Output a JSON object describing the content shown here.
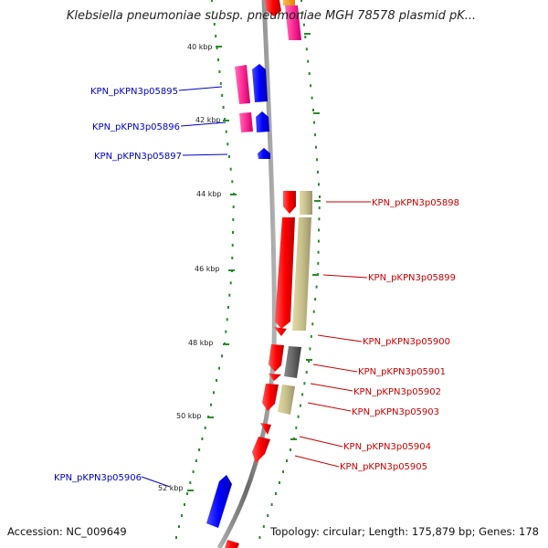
{
  "title": "Klebsiella pneumoniae subsp. pneumoniae MGH 78578 plasmid pK...",
  "footer": {
    "accession": "Accession: NC_009649",
    "info": "Topology: circular; Length: 175,879 bp; Genes: 178"
  },
  "ticks": [
    {
      "label": "40 kbp"
    },
    {
      "label": "42 kbp"
    },
    {
      "label": "44 kbp"
    },
    {
      "label": "46 kbp"
    },
    {
      "label": "48 kbp"
    },
    {
      "label": "50 kbp"
    },
    {
      "label": "52 kbp"
    }
  ],
  "reverse_genes": [
    {
      "label": "KPN_pKPN3p05895",
      "color": "#0000cc"
    },
    {
      "label": "KPN_pKPN3p05896",
      "color": "#0000cc"
    },
    {
      "label": "KPN_pKPN3p05897",
      "color": "#0000cc"
    },
    {
      "label": "KPN_pKPN3p05906",
      "color": "#0000cc"
    }
  ],
  "forward_genes": [
    {
      "label": "KPN_pKPN3p05898",
      "color": "#cc0000"
    },
    {
      "label": "KPN_pKPN3p05899",
      "color": "#cc0000"
    },
    {
      "label": "KPN_pKPN3p05900",
      "color": "#cc0000"
    },
    {
      "label": "KPN_pKPN3p05901",
      "color": "#cc0000"
    },
    {
      "label": "KPN_pKPN3p05902",
      "color": "#cc0000"
    },
    {
      "label": "KPN_pKPN3p05903",
      "color": "#cc0000"
    },
    {
      "label": "KPN_pKPN3p05904",
      "color": "#cc0000"
    },
    {
      "label": "KPN_pKPN3p05905",
      "color": "#cc0000"
    }
  ],
  "colors": {
    "backbone": "#8a8a8a",
    "dots": "#2a8a2a",
    "forward_cds": "#ff0000",
    "reverse_cds": "#0000ff",
    "cog_magenta": "#ff3399",
    "cog_khaki": "#c8c08a",
    "cog_gray": "#666666",
    "cog_orange": "#ff9900"
  }
}
